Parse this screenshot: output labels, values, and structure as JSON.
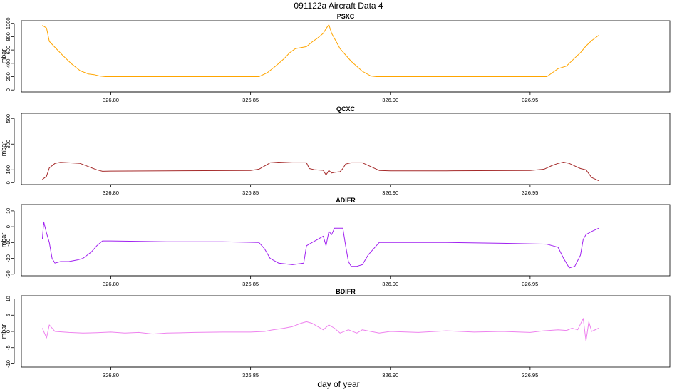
{
  "title": "091122a   Aircraft Data 4",
  "xlabel": "day of year",
  "chart_data": [
    {
      "type": "line",
      "title": "PSXC",
      "ylabel": "mbar",
      "color": "#ffa500",
      "ylim": [
        -30,
        1040
      ],
      "yticks": [
        "0",
        "200",
        "400",
        "600",
        "800",
        "1000"
      ],
      "yticks_values": [
        0,
        200,
        400,
        600,
        800,
        1000
      ],
      "xlim": [
        326.768,
        327.0
      ],
      "xticks": [
        "326.80",
        "326.85",
        "326.90",
        "326.95"
      ],
      "xticks_values": [
        326.8,
        326.85,
        326.9,
        326.95
      ],
      "x": [
        326.7755,
        326.777,
        326.778,
        326.78,
        326.783,
        326.786,
        326.789,
        326.792,
        326.794,
        326.796,
        326.798,
        326.8,
        326.81,
        326.83,
        326.853,
        326.856,
        326.859,
        326.862,
        326.864,
        326.866,
        326.87,
        326.872,
        326.874,
        326.876,
        326.877,
        326.878,
        326.879,
        326.882,
        326.886,
        326.89,
        326.893,
        326.895,
        326.9,
        326.92,
        326.94,
        326.956,
        326.958,
        326.96,
        326.963,
        326.966,
        326.968,
        326.97,
        326.972,
        326.9745
      ],
      "y": [
        970,
        930,
        730,
        640,
        510,
        390,
        290,
        240,
        230,
        210,
        200,
        200,
        200,
        200,
        200,
        260,
        360,
        470,
        560,
        620,
        650,
        720,
        780,
        850,
        920,
        980,
        850,
        620,
        430,
        280,
        210,
        200,
        200,
        200,
        200,
        200,
        260,
        320,
        360,
        480,
        560,
        660,
        740,
        820
      ]
    },
    {
      "type": "line",
      "title": "QCXC",
      "ylabel": "mbar",
      "color": "#a52a2a",
      "ylim": [
        -15,
        540
      ],
      "yticks": [
        "0",
        "100",
        "300",
        "500"
      ],
      "yticks_values": [
        0,
        100,
        300,
        500
      ],
      "xlim": [
        326.768,
        327.0
      ],
      "xticks": [
        "326.80",
        "326.85",
        "326.90",
        "326.95"
      ],
      "xticks_values": [
        326.8,
        326.85,
        326.9,
        326.95
      ],
      "x": [
        326.7755,
        326.777,
        326.778,
        326.78,
        326.782,
        326.785,
        326.789,
        326.792,
        326.795,
        326.797,
        326.8,
        326.82,
        326.85,
        326.853,
        326.855,
        326.857,
        326.86,
        326.865,
        326.87,
        326.871,
        326.873,
        326.876,
        326.877,
        326.878,
        326.879,
        326.88,
        326.882,
        326.883,
        326.884,
        326.886,
        326.89,
        326.893,
        326.896,
        326.9,
        326.92,
        326.95,
        326.955,
        326.958,
        326.96,
        326.962,
        326.964,
        326.966,
        326.968,
        326.97,
        326.972,
        326.9745
      ],
      "y": [
        25,
        50,
        115,
        150,
        158,
        155,
        150,
        125,
        100,
        88,
        90,
        92,
        95,
        105,
        130,
        155,
        160,
        155,
        155,
        110,
        100,
        96,
        60,
        95,
        75,
        80,
        85,
        110,
        145,
        155,
        155,
        125,
        95,
        92,
        92,
        95,
        105,
        135,
        150,
        160,
        150,
        130,
        110,
        100,
        40,
        15
      ]
    },
    {
      "type": "line",
      "title": "ADIFR",
      "ylabel": "mbar",
      "color": "#a020f0",
      "ylim": [
        -31,
        14
      ],
      "yticks": [
        "-30",
        "-20",
        "-10",
        "0",
        "10"
      ],
      "yticks_values": [
        -30,
        -20,
        -10,
        0,
        10
      ],
      "xlim": [
        326.768,
        327.0
      ],
      "xticks": [
        "326.80",
        "326.85",
        "326.90",
        "326.95"
      ],
      "xticks_values": [
        326.8,
        326.85,
        326.9,
        326.95
      ],
      "x": [
        326.7755,
        326.776,
        326.777,
        326.778,
        326.779,
        326.78,
        326.782,
        326.785,
        326.788,
        326.79,
        326.793,
        326.795,
        326.797,
        326.8,
        326.82,
        326.84,
        326.853,
        326.855,
        326.857,
        326.86,
        326.865,
        326.869,
        326.87,
        326.872,
        326.874,
        326.876,
        326.877,
        326.878,
        326.879,
        326.88,
        326.882,
        326.883,
        326.884,
        326.885,
        326.886,
        326.888,
        326.89,
        326.892,
        326.894,
        326.896,
        326.9,
        326.92,
        326.94,
        326.956,
        326.958,
        326.96,
        326.962,
        326.964,
        326.966,
        326.968,
        326.969,
        326.97,
        326.972,
        326.9745
      ],
      "y": [
        -8,
        3,
        -4,
        -10,
        -20,
        -23,
        -22,
        -22,
        -21,
        -20,
        -16,
        -12,
        -9,
        -9,
        -9.5,
        -9.5,
        -10,
        -14,
        -20,
        -23,
        -24,
        -23,
        -12,
        -10,
        -8,
        -6,
        -12,
        -3,
        -5,
        -1,
        -1,
        -1,
        -12,
        -22,
        -25,
        -25,
        -24,
        -18,
        -14,
        -10,
        -10,
        -10,
        -10.5,
        -11,
        -12,
        -13,
        -20,
        -26,
        -25,
        -18,
        -8,
        -5,
        -3,
        -1
      ]
    },
    {
      "type": "line",
      "title": "BDIFR",
      "ylabel": "mbar",
      "color": "#ee82ee",
      "ylim": [
        -11,
        11
      ],
      "yticks": [
        "-10",
        "-5",
        "0",
        "5",
        "10"
      ],
      "yticks_values": [
        -10,
        -5,
        0,
        5,
        10
      ],
      "xlim": [
        326.768,
        327.0
      ],
      "xticks": [
        "326.80",
        "326.85",
        "326.90",
        "326.95"
      ],
      "xticks_values": [
        326.8,
        326.85,
        326.9,
        326.95
      ],
      "x": [
        326.7755,
        326.777,
        326.778,
        326.78,
        326.785,
        326.79,
        326.795,
        326.8,
        326.805,
        326.81,
        326.815,
        326.82,
        326.83,
        326.84,
        326.85,
        326.855,
        326.858,
        326.862,
        326.865,
        326.868,
        326.87,
        326.872,
        326.874,
        326.876,
        326.878,
        326.88,
        326.882,
        326.885,
        326.888,
        326.89,
        326.893,
        326.896,
        326.9,
        326.91,
        326.92,
        326.93,
        326.94,
        326.95,
        326.955,
        326.96,
        326.963,
        326.965,
        326.967,
        326.969,
        326.97,
        326.971,
        326.972,
        326.9745
      ],
      "y": [
        1,
        -2,
        2,
        0,
        -0.3,
        -0.5,
        -0.4,
        -0.2,
        -0.5,
        -0.3,
        -0.8,
        -0.5,
        -0.3,
        -0.2,
        -0.2,
        0,
        0.5,
        1,
        1.5,
        2.5,
        3,
        2.5,
        1.5,
        0.5,
        2,
        1,
        -0.5,
        0.5,
        -0.5,
        0.5,
        0,
        -0.5,
        0,
        -0.3,
        0.2,
        -0.2,
        0,
        -0.3,
        0.2,
        0.5,
        0.3,
        1,
        0.5,
        4,
        -3,
        3,
        0,
        1
      ]
    }
  ]
}
